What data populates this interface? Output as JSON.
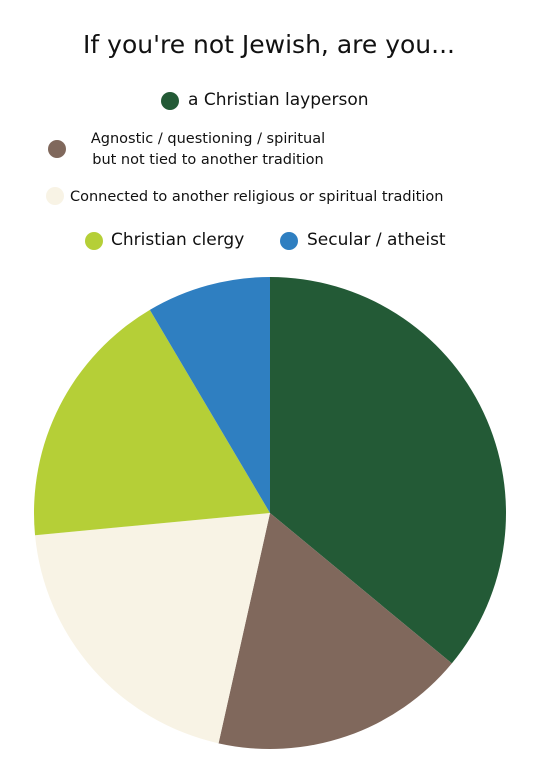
{
  "chart_data": {
    "type": "pie",
    "title": "If you're not Jewish, are you...",
    "categories": [
      "a Christian layperson",
      "Agnostic / questioning / spiritual but not tied to another tradition",
      "Connected to another religious or spiritual tradition",
      "Christian clergy",
      "Secular / atheist"
    ],
    "values": [
      36,
      17.5,
      20,
      18,
      8.5
    ],
    "colors": [
      "#235a36",
      "#80685c",
      "#f8f3e5",
      "#b5cf37",
      "#2f7fc1"
    ]
  }
}
